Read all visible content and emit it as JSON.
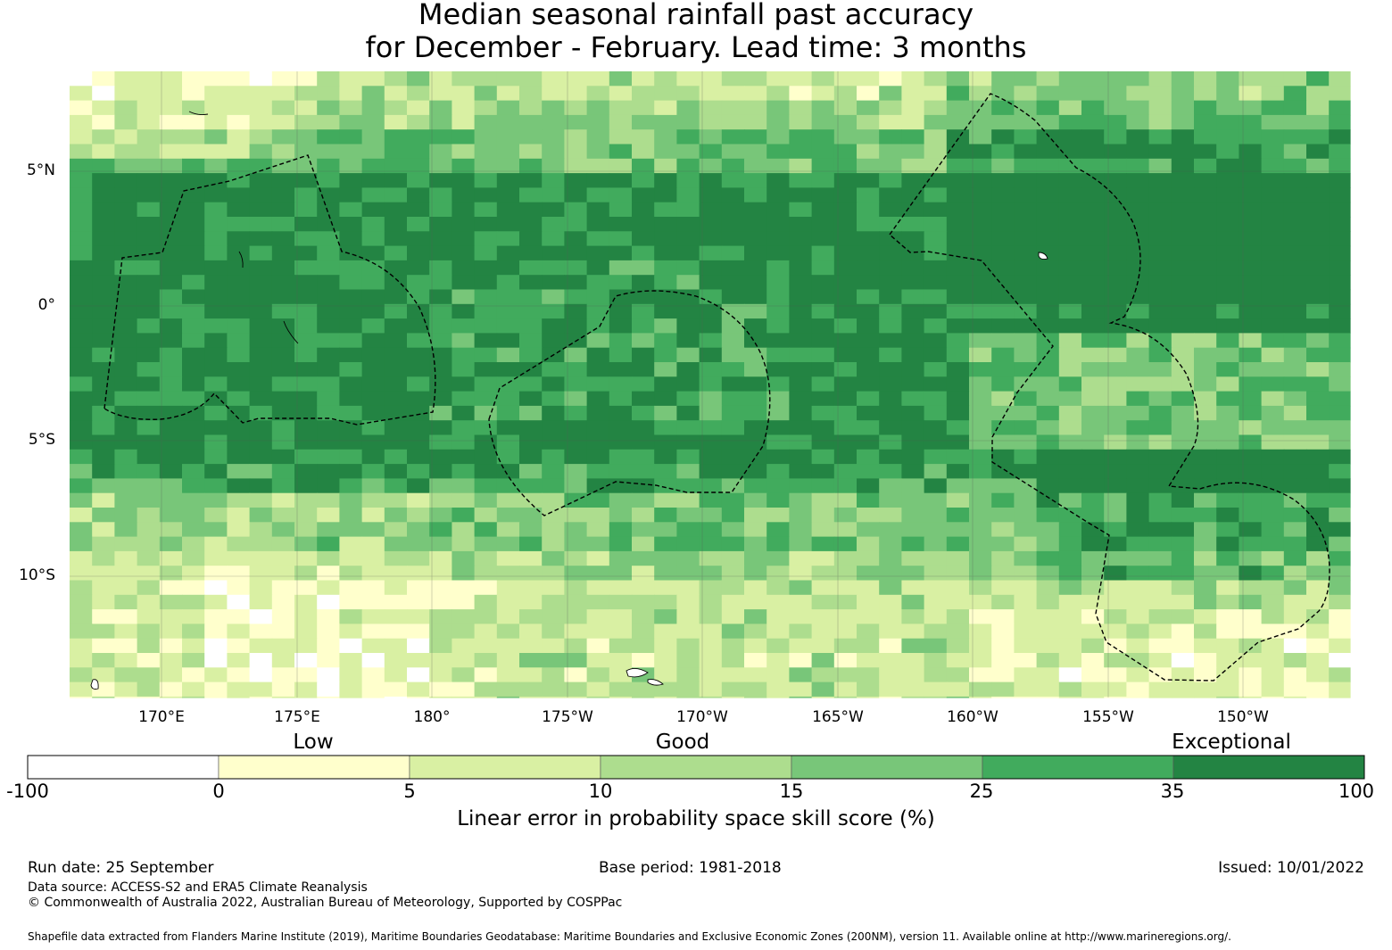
{
  "title": {
    "line1": "Median seasonal rainfall past accuracy",
    "line2": "for December - February. Lead time: 3 months"
  },
  "map": {
    "lat_labels": [
      "5°N",
      "0°",
      "5°S",
      "10°S"
    ],
    "lon_labels": [
      "170°E",
      "175°E",
      "180°",
      "175°W",
      "170°W",
      "165°W",
      "160°W",
      "155°W",
      "150°W"
    ]
  },
  "legend": {
    "categories": [
      "Low",
      "Good",
      "Exceptional"
    ],
    "ticks": [
      "-100",
      "0",
      "5",
      "10",
      "15",
      "25",
      "35",
      "100"
    ],
    "colors": [
      "#ffffff",
      "#ffffcc",
      "#d9f0a3",
      "#addd8e",
      "#78c679",
      "#41ab5d",
      "#238443"
    ],
    "title": "Linear error in probability space skill score (%)"
  },
  "footer": {
    "run_date": "Run date: 25 September",
    "base_period": "Base period: 1981-2018",
    "issued": "Issued: 10/01/2022",
    "data_source": "Data source: ACCESS-S2 and ERA5 Climate Reanalysis",
    "copyright": "© Commonwealth of Australia 2022, Australian Bureau of Meteorology, Supported by COSPPac",
    "shapefile": "Shapefile data extracted from Flanders Marine Institute (2019), Maritime Boundaries Geodatabase: Maritime Boundaries and Exclusive Economic Zones (200NM), version 11. Available online at http://www.marineregions.org/."
  }
}
